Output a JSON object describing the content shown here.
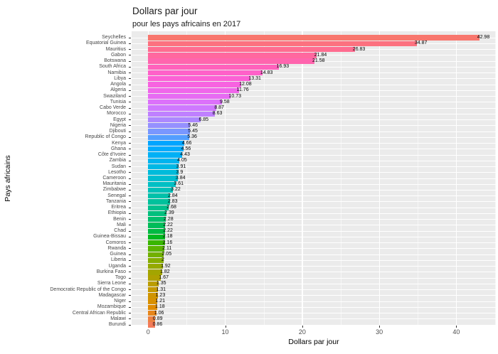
{
  "chart_data": {
    "type": "bar",
    "orientation": "horizontal",
    "title": "Dollars par jour",
    "subtitle": "pour les pays africains en 2017",
    "xlabel": "Dollars par jour",
    "ylabel": "Pays africains",
    "legend": "none",
    "grid": "on",
    "sort": "descending",
    "categories": [
      "Seychelles",
      "Equatorial Guinea",
      "Mauritius",
      "Gabon",
      "Botswana",
      "South Africa",
      "Namibia",
      "Libya",
      "Angola",
      "Algeria",
      "Swaziland",
      "Tunisia",
      "Cabo Verde",
      "Morocco",
      "Egypt",
      "Nigeria",
      "Djibouti",
      "Republic of Congo",
      "Kenya",
      "Ghana",
      "Côte d'Ivoire",
      "Zambia",
      "Sudan",
      "Lesotho",
      "Cameroon",
      "Mauritania",
      "Zimbabwe",
      "Senegal",
      "Tanzania",
      "Eritrea",
      "Ethiopia",
      "Benin",
      "Mali",
      "Chad",
      "Guinea-Bissau",
      "Comoros",
      "Rwanda",
      "Guinea",
      "Liberia",
      "Uganda",
      "Burkina Faso",
      "Togo",
      "Sierra Leone",
      "Democratic Republic of the Congo",
      "Madagascar",
      "Niger",
      "Mozambique",
      "Central African Republic",
      "Malawi",
      "Burundi"
    ],
    "values": [
      42.98,
      34.87,
      26.83,
      21.84,
      21.58,
      16.93,
      14.83,
      13.31,
      12.08,
      11.76,
      10.73,
      9.58,
      8.87,
      8.63,
      6.85,
      5.46,
      5.45,
      5.36,
      4.66,
      4.56,
      4.43,
      4.05,
      3.91,
      3.9,
      3.84,
      3.61,
      3.22,
      2.84,
      2.83,
      2.68,
      2.39,
      2.28,
      2.22,
      2.22,
      2.18,
      2.16,
      2.11,
      2.05,
      2,
      1.92,
      1.82,
      1.67,
      1.35,
      1.31,
      1.23,
      1.21,
      1.18,
      1.06,
      0.89,
      0.86
    ],
    "value_labels": [
      "42.98",
      "34.87",
      "26.83",
      "21.84",
      "21.58",
      "16.93",
      "14.83",
      "13.31",
      "12.08",
      "11.76",
      "10.73",
      "9.58",
      "8.87",
      "8.63",
      "6.85",
      "5.46",
      "5.45",
      "5.36",
      "4.66",
      "4.56",
      "4.43",
      "4.05",
      "3.91",
      "3.9",
      "3.84",
      "3.61",
      "3.22",
      "2.84",
      "2.83",
      "2.68",
      "2.39",
      "2.28",
      "2.22",
      "2.22",
      "2.18",
      "2.16",
      "2.11",
      "2.05",
      "2",
      "1.92",
      "1.82",
      "1.67",
      "1.35",
      "1.31",
      "1.23",
      "1.21",
      "1.18",
      "1.06",
      "0.89",
      "0.86"
    ],
    "x_ticks": [
      0,
      10,
      20,
      30,
      40
    ],
    "x_ticks_labels": [
      "0",
      "10",
      "20",
      "30",
      "40"
    ],
    "x_minor_ticks": [
      5,
      15,
      25,
      35,
      45
    ],
    "xlim": [
      -2.15,
      45.13
    ],
    "palette": {
      "type": "hcl_rainbow_reversed",
      "hue_start_deg": 15,
      "hue_step_deg": -7.2,
      "chroma": 100,
      "luminance": 65,
      "first_bar_color": "#F8766D"
    },
    "colors": {
      "panel_bg": "#EBEBEB",
      "grid": "#FFFFFF",
      "axis_text": "#4D4D4D",
      "label_text": "#000000",
      "title_text": "#1A1A1A",
      "background": "#FFFFFF"
    }
  }
}
